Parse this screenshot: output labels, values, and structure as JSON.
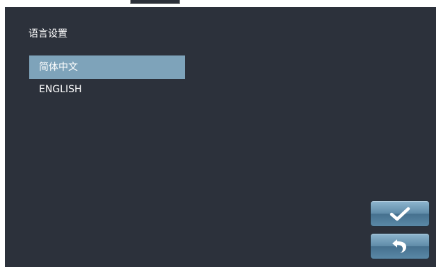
{
  "header": {
    "title": "语言设置"
  },
  "languages": {
    "items": [
      {
        "label": "简体中文",
        "selected": true
      },
      {
        "label": "ENGLISH",
        "selected": false
      }
    ]
  },
  "actions": {
    "confirm_icon": "checkmark-icon",
    "back_icon": "return-arrow-icon"
  },
  "colors": {
    "background": "#2c313b",
    "selection": "#7ea3ba",
    "button": "#5f8ba8",
    "text": "#ffffff"
  }
}
